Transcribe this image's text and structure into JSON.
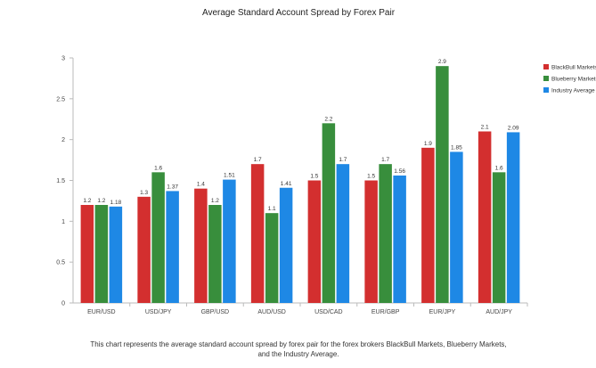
{
  "chart_data": {
    "type": "bar",
    "title": "Average Standard Account Spread by Forex Pair",
    "categories": [
      "EUR/USD",
      "USD/JPY",
      "GBP/USD",
      "AUD/USD",
      "USD/CAD",
      "EUR/GBP",
      "EUR/JPY",
      "AUD/JPY"
    ],
    "series": [
      {
        "name": "BlackBull Markets",
        "color": "#d32f2f",
        "values": [
          1.2,
          1.3,
          1.4,
          1.7,
          1.5,
          1.5,
          1.9,
          2.1
        ],
        "labels": [
          "1.2",
          "1.3",
          "1.4",
          "1.7",
          "1.5",
          "1.5",
          "1.9",
          "2.1"
        ]
      },
      {
        "name": "Blueberry Markets",
        "color": "#388e3c",
        "values": [
          1.2,
          1.6,
          1.2,
          1.1,
          2.2,
          1.7,
          2.9,
          1.6
        ],
        "labels": [
          "1.2",
          "1.6",
          "1.2",
          "1.1",
          "2.2",
          "1.7",
          "2.9",
          "1.6"
        ]
      },
      {
        "name": "Industry Average",
        "color": "#1e88e5",
        "values": [
          1.18,
          1.37,
          1.51,
          1.41,
          1.7,
          1.56,
          1.85,
          2.09
        ],
        "labels": [
          "1.18",
          "1.37",
          "1.51",
          "1.41",
          "1.7",
          "1.56",
          "1.85",
          "2.09"
        ]
      }
    ],
    "ylim": [
      0,
      3
    ],
    "yticks": [
      "0",
      "0.5",
      "1",
      "1.5",
      "2",
      "2.5",
      "3"
    ],
    "legend_position": "right",
    "grid": false,
    "xlabel": "",
    "ylabel": ""
  },
  "caption": {
    "line1": "This chart represents the average standard account spread by forex pair for the forex brokers BlackBull Markets, Blueberry Markets,",
    "line2": "and the Industry Average."
  },
  "legend": {
    "entries": [
      "BlackBull Markets",
      "Blueberry Markets",
      "Industry Average"
    ]
  }
}
